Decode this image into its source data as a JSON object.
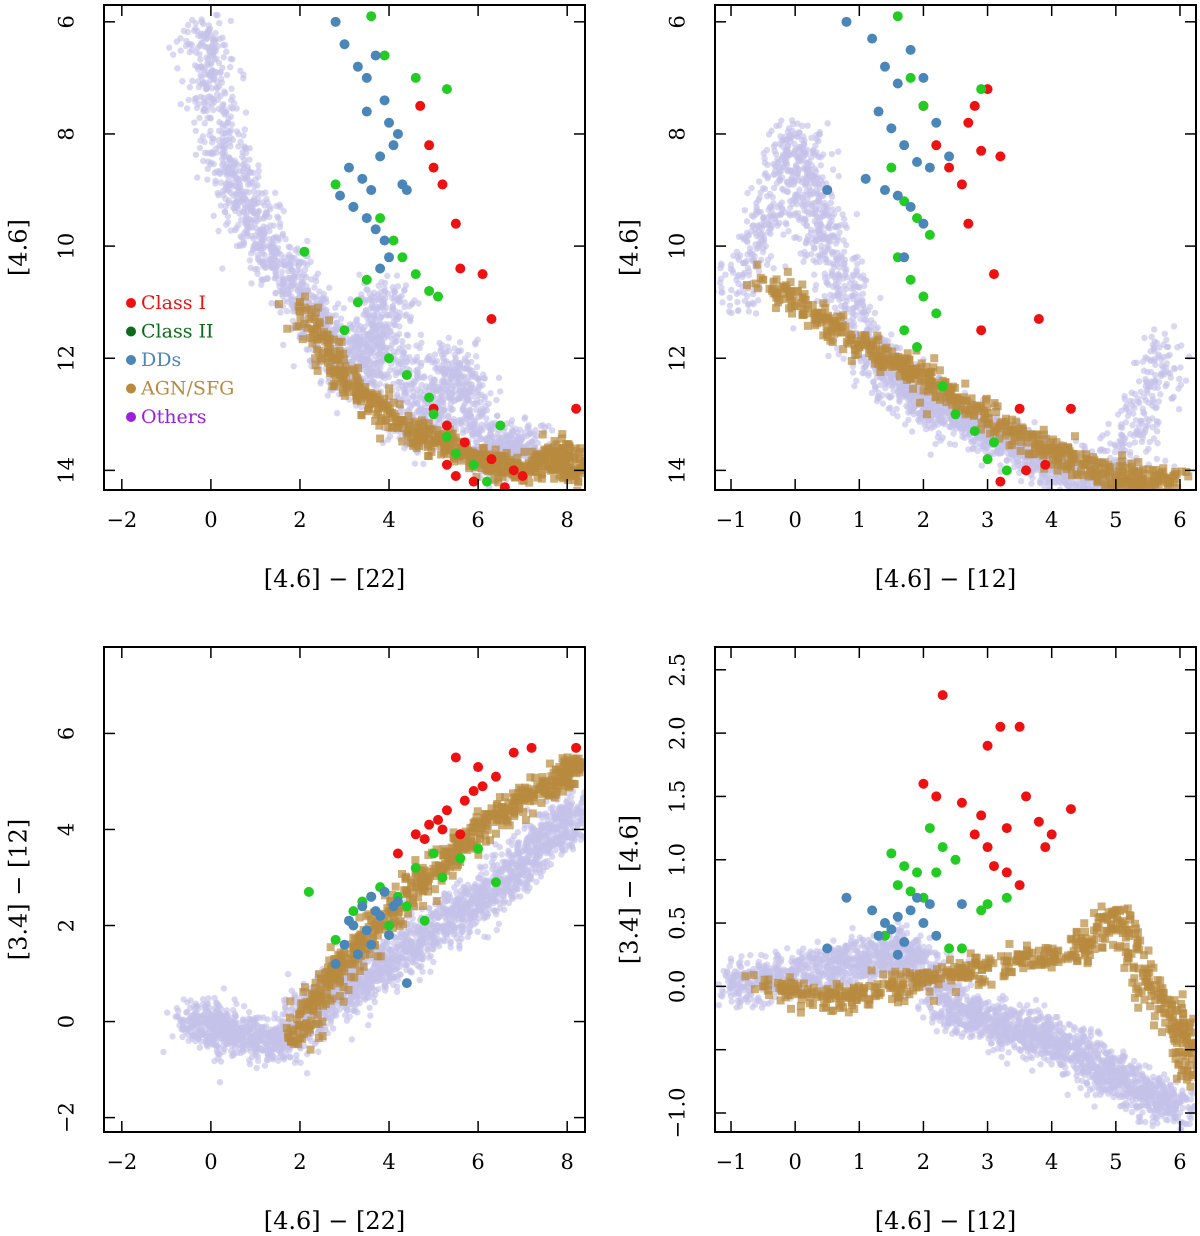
{
  "chart_data": [
    {
      "type": "scatter",
      "id": "p1",
      "xlabel": "[4.6] − [22]",
      "ylabel": "[4.6]",
      "xlim": [
        -2.4,
        8.4
      ],
      "ylim": [
        14.35,
        5.7
      ],
      "xticks": [
        -2,
        0,
        2,
        4,
        6,
        8
      ],
      "yticks": [
        6,
        8,
        10,
        12,
        14
      ],
      "legend": {
        "placement": "center-left",
        "entries": [
          {
            "label": "Class I",
            "color": "#ee1111"
          },
          {
            "label": "Class II",
            "color": "#0a6b1a"
          },
          {
            "label": "DDs",
            "color": "#4a86b8"
          },
          {
            "label": "AGN/SFG",
            "color": "#b88a3e"
          },
          {
            "label": "Others",
            "color": "#9a20e0"
          }
        ]
      },
      "series": [
        {
          "name": "Others",
          "color": "#c4c2ea",
          "marker": "circle",
          "x": [
            -0.2,
            0.3,
            1.1,
            2.3,
            3.2,
            4.6,
            5.5,
            6.1,
            7.2,
            3.9
          ],
          "y": [
            6.0,
            8.4,
            9.8,
            11.2,
            12.5,
            13.5,
            12.0,
            13.8,
            13.5,
            10.8
          ]
        },
        {
          "name": "AGN/SFG",
          "color": "#b88a3e",
          "marker": "square",
          "x": [
            2.0,
            2.8,
            3.6,
            4.7,
            5.6,
            6.4,
            7.2,
            7.9,
            8.2
          ],
          "y": [
            11.0,
            12.2,
            12.8,
            13.4,
            13.6,
            13.9,
            14.0,
            13.6,
            14.1
          ]
        },
        {
          "name": "Class I",
          "color": "#ee1111",
          "marker": "circle",
          "x": [
            4.7,
            4.9,
            5.0,
            5.2,
            5.5,
            5.6,
            6.1,
            6.3,
            5.0,
            5.3,
            5.7,
            6.3,
            6.8,
            8.2,
            5.3,
            5.5,
            5.9,
            6.6,
            7.0
          ],
          "y": [
            7.5,
            8.2,
            8.6,
            8.9,
            9.6,
            10.4,
            10.5,
            11.3,
            12.9,
            13.2,
            13.5,
            13.8,
            14.0,
            12.9,
            13.9,
            14.1,
            14.2,
            14.3,
            14.1
          ]
        },
        {
          "name": "Class II",
          "color": "#22cc22",
          "marker": "circle",
          "x": [
            3.6,
            3.9,
            4.6,
            5.3,
            2.1,
            2.8,
            3.2,
            3.8,
            4.1,
            4.3,
            4.6,
            4.9,
            5.1,
            3.0,
            3.3,
            3.5,
            4.0,
            4.4,
            4.9,
            5.0,
            5.3,
            5.5,
            5.9,
            6.2,
            6.5
          ],
          "y": [
            5.9,
            6.6,
            7.0,
            7.2,
            10.1,
            8.9,
            9.3,
            9.5,
            9.9,
            10.2,
            10.5,
            10.8,
            10.9,
            11.5,
            11.0,
            10.6,
            12.0,
            12.3,
            12.7,
            13.0,
            13.4,
            13.7,
            13.9,
            14.2,
            13.2
          ]
        },
        {
          "name": "DDs",
          "color": "#4a86b8",
          "marker": "circle",
          "x": [
            2.8,
            3.0,
            3.3,
            3.5,
            3.7,
            3.9,
            4.0,
            4.2,
            3.1,
            3.4,
            3.6,
            3.8,
            4.1,
            4.3,
            2.9,
            3.2,
            3.5,
            3.7,
            3.9,
            4.4,
            4.0,
            3.8,
            3.5
          ],
          "y": [
            6.0,
            6.4,
            6.8,
            7.0,
            6.6,
            7.4,
            7.8,
            8.0,
            8.6,
            8.8,
            9.0,
            8.4,
            8.2,
            8.9,
            9.1,
            9.3,
            9.5,
            9.7,
            9.9,
            9.0,
            10.2,
            10.4,
            7.6
          ]
        }
      ]
    },
    {
      "type": "scatter",
      "id": "p2",
      "xlabel": "[4.6] − [12]",
      "ylabel": "[4.6]",
      "xlim": [
        -1.25,
        6.25
      ],
      "ylim": [
        14.35,
        5.7
      ],
      "xticks": [
        -1,
        0,
        1,
        2,
        3,
        4,
        5,
        6
      ],
      "yticks": [
        6,
        8,
        10,
        12,
        14
      ],
      "series": [
        {
          "name": "Others",
          "color": "#c4c2ea",
          "marker": "circle",
          "x": [
            -0.9,
            0.0,
            0.5,
            1.2,
            2.0,
            2.8,
            3.6,
            4.2,
            5.0,
            5.8
          ],
          "y": [
            11.0,
            8.0,
            10.0,
            12.0,
            12.8,
            13.2,
            13.6,
            14.0,
            14.2,
            11.8
          ]
        },
        {
          "name": "AGN/SFG",
          "color": "#b88a3e",
          "marker": "square",
          "x": [
            -0.5,
            0.3,
            1.0,
            1.8,
            2.5,
            3.2,
            3.9,
            4.6,
            5.3,
            5.9
          ],
          "y": [
            10.6,
            11.2,
            11.8,
            12.2,
            12.7,
            13.2,
            13.6,
            14.0,
            14.2,
            14.1
          ]
        },
        {
          "name": "Class I",
          "color": "#ee1111",
          "marker": "circle",
          "x": [
            2.0,
            2.2,
            2.4,
            2.6,
            2.7,
            2.8,
            2.9,
            3.0,
            3.2,
            2.7,
            2.9,
            3.1,
            3.5,
            3.8,
            4.3,
            3.9,
            3.6,
            3.2
          ],
          "y": [
            7.5,
            8.2,
            8.6,
            8.9,
            7.8,
            7.5,
            8.3,
            7.2,
            8.4,
            9.6,
            11.5,
            10.5,
            12.9,
            11.3,
            12.9,
            13.9,
            14.0,
            14.2
          ]
        },
        {
          "name": "Class II",
          "color": "#22cc22",
          "marker": "circle",
          "x": [
            1.6,
            1.8,
            2.0,
            1.5,
            1.7,
            1.9,
            2.1,
            1.6,
            1.8,
            2.0,
            2.2,
            1.7,
            1.9,
            2.3,
            2.5,
            2.8,
            3.0,
            3.3,
            2.9,
            3.1
          ],
          "y": [
            5.9,
            7.0,
            7.5,
            8.6,
            9.2,
            9.5,
            9.8,
            10.2,
            10.6,
            10.9,
            11.2,
            11.5,
            11.8,
            12.5,
            13.0,
            13.3,
            13.8,
            14.0,
            7.2,
            13.5
          ]
        },
        {
          "name": "DDs",
          "color": "#4a86b8",
          "marker": "circle",
          "x": [
            0.8,
            1.2,
            1.4,
            1.6,
            1.8,
            2.0,
            2.2,
            1.3,
            1.5,
            1.7,
            1.9,
            2.1,
            1.1,
            1.4,
            1.6,
            1.8,
            2.0,
            2.4,
            0.5,
            1.7
          ],
          "y": [
            6.0,
            6.3,
            6.8,
            7.1,
            6.5,
            7.0,
            7.8,
            7.6,
            7.9,
            8.2,
            8.5,
            8.6,
            8.8,
            9.0,
            9.1,
            9.3,
            9.6,
            8.4,
            9.0,
            10.2
          ]
        }
      ]
    },
    {
      "type": "scatter",
      "id": "p3",
      "xlabel": "[4.6] − [22]",
      "ylabel": "[3.4] − [12]",
      "xlim": [
        -2.4,
        8.4
      ],
      "ylim": [
        -2.3,
        7.8
      ],
      "xticks": [
        -2,
        0,
        2,
        4,
        6,
        8
      ],
      "yticks": [
        -2,
        0,
        2,
        4,
        6
      ],
      "series": [
        {
          "name": "Others",
          "color": "#c4c2ea",
          "marker": "circle",
          "x": [
            -0.4,
            0.5,
            1.5,
            2.5,
            3.5,
            4.5,
            5.5,
            6.5,
            7.5,
            8.2
          ],
          "y": [
            0.0,
            -0.2,
            -0.5,
            0.4,
            0.9,
            1.6,
            2.2,
            2.9,
            3.7,
            4.4
          ]
        },
        {
          "name": "AGN/SFG",
          "color": "#b88a3e",
          "marker": "square",
          "x": [
            1.8,
            2.4,
            3.0,
            3.8,
            4.6,
            5.4,
            6.2,
            7.0,
            7.8,
            8.3
          ],
          "y": [
            -0.4,
            0.5,
            1.2,
            2.0,
            2.8,
            3.5,
            4.2,
            4.6,
            5.0,
            5.4
          ]
        },
        {
          "name": "Class I",
          "color": "#ee1111",
          "marker": "circle",
          "x": [
            4.2,
            4.6,
            4.9,
            5.1,
            5.3,
            5.5,
            5.7,
            5.9,
            6.1,
            6.4,
            6.8,
            7.2,
            8.2,
            4.8,
            5.2,
            5.6,
            6.0
          ],
          "y": [
            3.5,
            3.9,
            4.1,
            4.2,
            4.4,
            5.5,
            4.6,
            4.8,
            4.9,
            5.1,
            5.6,
            5.7,
            5.7,
            3.8,
            4.0,
            3.9,
            5.3
          ]
        },
        {
          "name": "Class II",
          "color": "#22cc22",
          "marker": "circle",
          "x": [
            2.2,
            2.8,
            3.2,
            3.6,
            4.0,
            4.4,
            4.8,
            5.2,
            5.6,
            6.0,
            6.4,
            4.2,
            4.6,
            5.0,
            3.4,
            3.8
          ],
          "y": [
            2.7,
            1.7,
            2.3,
            2.6,
            2.0,
            2.4,
            2.1,
            3.0,
            3.4,
            3.6,
            2.9,
            2.6,
            3.2,
            3.5,
            2.5,
            2.8
          ]
        },
        {
          "name": "DDs",
          "color": "#4a86b8",
          "marker": "circle",
          "x": [
            2.8,
            3.0,
            3.2,
            3.4,
            3.6,
            3.8,
            4.0,
            4.2,
            3.3,
            3.5,
            3.7,
            3.9,
            3.1,
            4.4,
            4.1,
            3.6
          ],
          "y": [
            1.2,
            1.6,
            2.0,
            2.4,
            2.6,
            2.2,
            1.8,
            2.5,
            1.4,
            1.9,
            2.3,
            2.7,
            2.1,
            0.8,
            2.4,
            1.6
          ]
        }
      ]
    },
    {
      "type": "scatter",
      "id": "p4",
      "xlabel": "[4.6] − [12]",
      "ylabel": "[3.4] − [4.6]",
      "xlim": [
        -1.25,
        6.25
      ],
      "ylim": [
        -1.15,
        2.68
      ],
      "xticks": [
        -1,
        0,
        1,
        2,
        3,
        4,
        5,
        6
      ],
      "yticks": [
        -1.0,
        -0.5,
        0.0,
        0.5,
        1.0,
        1.5,
        2.0,
        2.5
      ],
      "ytick_labels": [
        "−1.0",
        "",
        "0.0",
        "0.5",
        "1.0",
        "1.5",
        "2.0",
        "2.5"
      ],
      "series": [
        {
          "name": "Others",
          "color": "#c4c2ea",
          "marker": "circle",
          "x": [
            -1.0,
            0.0,
            1.0,
            1.8,
            2.5,
            3.2,
            3.9,
            4.6,
            5.3,
            6.0
          ],
          "y": [
            0.0,
            0.1,
            0.2,
            0.3,
            -0.2,
            -0.3,
            -0.4,
            -0.6,
            -0.8,
            -1.0
          ]
        },
        {
          "name": "AGN/SFG",
          "color": "#b88a3e",
          "marker": "square",
          "x": [
            -0.5,
            0.5,
            1.5,
            2.5,
            3.5,
            4.5,
            5.0,
            5.5,
            6.0,
            6.2
          ],
          "y": [
            0.0,
            -0.1,
            0.0,
            0.1,
            0.2,
            0.3,
            0.6,
            0.0,
            -0.3,
            -0.7
          ]
        },
        {
          "name": "Class I",
          "color": "#ee1111",
          "marker": "circle",
          "x": [
            2.3,
            3.2,
            3.5,
            3.0,
            2.0,
            2.2,
            2.6,
            2.9,
            3.3,
            3.6,
            3.8,
            4.0,
            4.3,
            3.9,
            3.1,
            3.5,
            2.8,
            3.0,
            3.3
          ],
          "y": [
            2.3,
            2.05,
            2.05,
            1.9,
            1.6,
            1.5,
            1.45,
            1.35,
            1.25,
            1.5,
            1.3,
            1.2,
            1.4,
            1.1,
            0.95,
            0.8,
            1.2,
            1.1,
            0.9
          ]
        },
        {
          "name": "Class II",
          "color": "#22cc22",
          "marker": "circle",
          "x": [
            1.5,
            1.7,
            1.9,
            2.1,
            2.3,
            2.5,
            1.6,
            1.8,
            2.0,
            2.2,
            2.4,
            1.4,
            3.0,
            3.3,
            2.6,
            2.9
          ],
          "y": [
            1.05,
            0.95,
            0.9,
            1.25,
            1.1,
            1.0,
            0.8,
            0.75,
            0.7,
            0.9,
            0.3,
            0.4,
            0.65,
            0.7,
            0.3,
            0.6
          ]
        },
        {
          "name": "DDs",
          "color": "#4a86b8",
          "marker": "circle",
          "x": [
            0.5,
            0.8,
            1.2,
            1.4,
            1.6,
            1.8,
            2.0,
            1.3,
            1.5,
            1.7,
            1.9,
            2.1,
            2.2,
            1.6,
            2.6
          ],
          "y": [
            0.3,
            0.7,
            0.6,
            0.5,
            0.55,
            0.6,
            0.5,
            0.4,
            0.45,
            0.35,
            0.7,
            0.65,
            0.4,
            0.25,
            0.65
          ]
        }
      ]
    }
  ]
}
